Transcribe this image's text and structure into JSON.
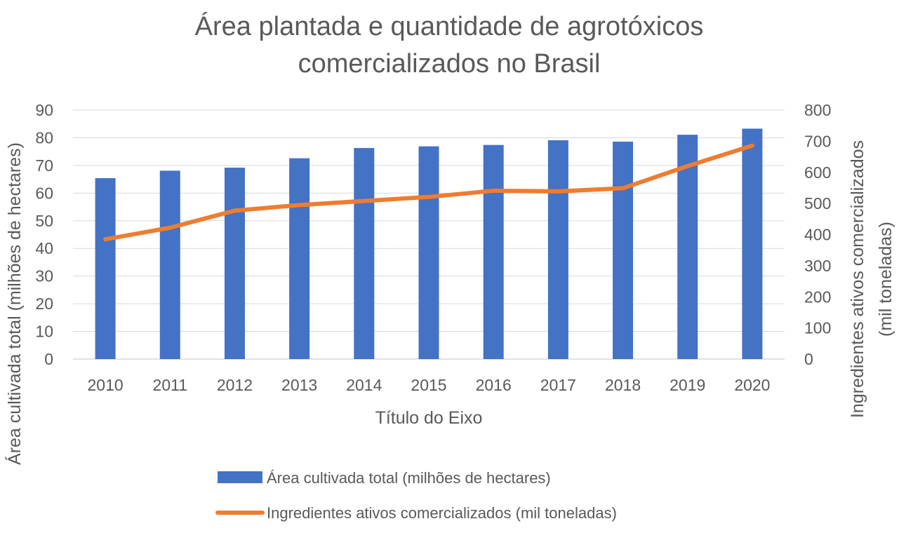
{
  "chart_data": {
    "type": "bar",
    "title": "Área plantada e quantidade de agrotóxicos comercializados no Brasil",
    "title_lines": [
      "Área plantada e quantidade de agrotóxicos",
      "comercializados no Brasil"
    ],
    "xlabel": "Título do Eixo",
    "ylabel_left": "Área cultivada total (milhões de hectares)",
    "ylabel_right_lines": [
      "Ingredientes ativos comercializados",
      "(mil toneladas)"
    ],
    "categories": [
      "2010",
      "2011",
      "2012",
      "2013",
      "2014",
      "2015",
      "2016",
      "2017",
      "2018",
      "2019",
      "2020"
    ],
    "ylim_left": [
      0,
      90
    ],
    "yticks_left": [
      0,
      10,
      20,
      30,
      40,
      50,
      60,
      70,
      80,
      90
    ],
    "ylim_right": [
      0,
      800
    ],
    "yticks_right": [
      0,
      100,
      200,
      300,
      400,
      500,
      600,
      700,
      800
    ],
    "grid": true,
    "legend_position": "bottom",
    "series": [
      {
        "name": "Área cultivada total (milhões de hectares)",
        "type": "bar",
        "axis": "left",
        "color": "#4472C4",
        "values": [
          65.4,
          68.1,
          69.2,
          72.6,
          76.3,
          76.9,
          77.4,
          79.1,
          78.6,
          81.1,
          83.3
        ]
      },
      {
        "name": "Ingredientes ativos comercializados (mil toneladas)",
        "type": "line",
        "axis": "right",
        "color": "#ED7D31",
        "values": [
          385,
          422,
          477,
          495,
          508,
          521,
          541,
          539,
          549,
          620,
          686
        ]
      }
    ]
  }
}
